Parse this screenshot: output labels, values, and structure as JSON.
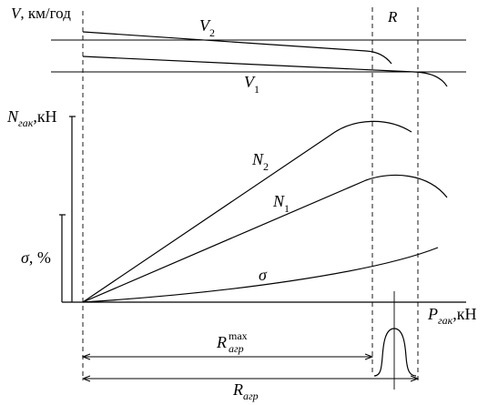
{
  "labels": {
    "v_axis": {
      "sym": "V",
      "unit": ", км/год"
    },
    "r_top": "R",
    "v2": {
      "sym": "V",
      "sub": "2"
    },
    "v1": {
      "sym": "V",
      "sub": "1"
    },
    "n_axis": {
      "sym": "N",
      "sub": "гак",
      "unit": ",кН"
    },
    "n2": {
      "sym": "N",
      "sub": "2"
    },
    "n1": {
      "sym": "N",
      "sub": "1"
    },
    "sigma_axis": {
      "sym": "σ",
      "unit": ", %"
    },
    "sigma_curve": "σ",
    "p_axis": {
      "sym": "P",
      "sub": "гак",
      "unit": ",кН"
    },
    "r_max": {
      "sym": "R",
      "sub": "агр",
      "sup": "max"
    },
    "r_agr": {
      "sym": "R",
      "sub": "агр"
    }
  }
}
